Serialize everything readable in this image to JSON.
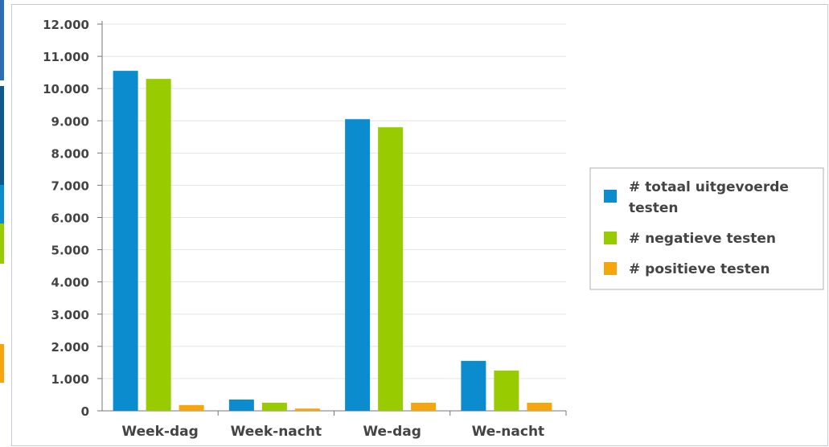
{
  "chart_data": {
    "type": "bar",
    "title": "",
    "xlabel": "",
    "ylabel": "",
    "categories": [
      "Week-dag",
      "Week-nacht",
      "We-dag",
      "We-nacht"
    ],
    "series": [
      {
        "name": "# totaal uitgevoerde testen",
        "values": [
          10550,
          350,
          9050,
          1550
        ],
        "color": "#0a8ccf"
      },
      {
        "name": "# negatieve testen",
        "values": [
          10300,
          250,
          8800,
          1250
        ],
        "color": "#99cc00"
      },
      {
        "name": "# positieve testen",
        "values": [
          180,
          70,
          250,
          250
        ],
        "color": "#f7a50c"
      }
    ],
    "ylim": [
      0,
      12000
    ],
    "yticks": [
      0,
      1000,
      2000,
      3000,
      4000,
      5000,
      6000,
      7000,
      8000,
      9000,
      10000,
      11000,
      12000
    ],
    "ytick_labels": [
      "0",
      "1.000",
      "2.000",
      "3.000",
      "4.000",
      "5.000",
      "6.000",
      "7.000",
      "8.000",
      "9.000",
      "10.000",
      "11.000",
      "12.000"
    ],
    "grid": true,
    "legend_position": "right",
    "legend_lines": [
      [
        "# totaal uitgevoerde",
        "testen"
      ],
      [
        "# negatieve testen"
      ],
      [
        "# positieve testen"
      ]
    ]
  },
  "left_strip_colors": [
    "#2a6fb5",
    "#0f5a8c",
    "#0a8ccf",
    "#99cc00",
    "#ffffff",
    "#f7a50c",
    "#ffffff"
  ]
}
